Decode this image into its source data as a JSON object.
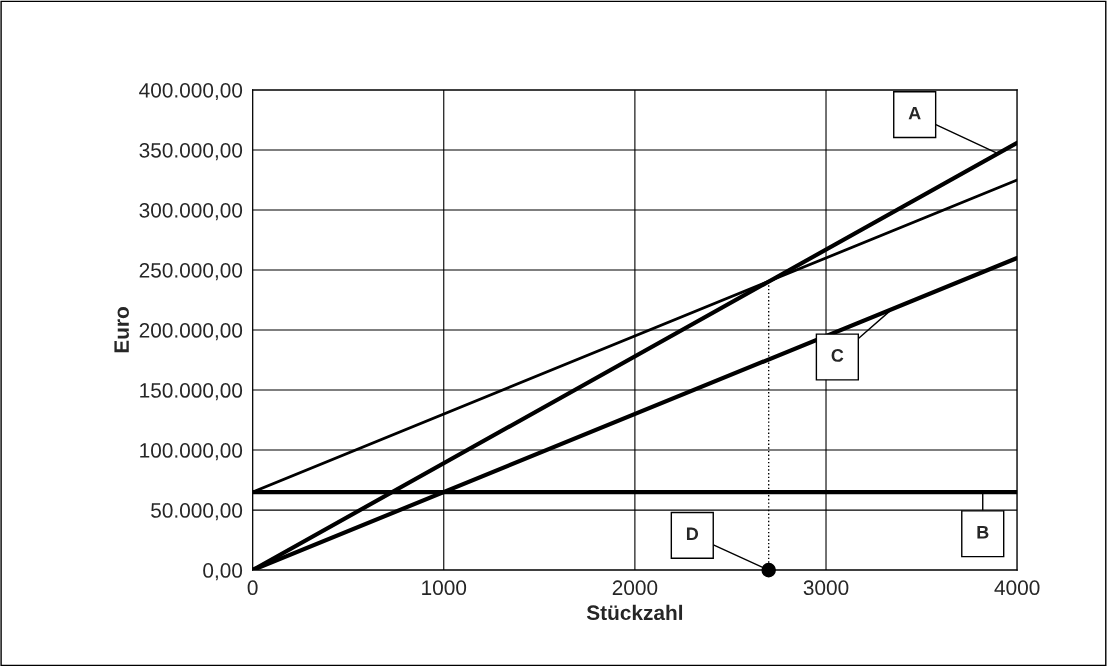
{
  "chart_data": {
    "type": "line",
    "xlabel": "Stückzahl",
    "ylabel": "Euro",
    "series": [
      {
        "color": "#000000",
        "x": [
          0,
          4000
        ],
        "values": [
          0,
          356000
        ]
      },
      {
        "color": "#000000",
        "x": [
          0,
          4000
        ],
        "values": [
          65000,
          325000
        ]
      },
      {
        "color": "#000000",
        "x": [
          0,
          4000
        ],
        "values": [
          0,
          260000
        ]
      },
      {
        "color": "#000000",
        "x": [
          0,
          4000
        ],
        "values": [
          65000,
          65000
        ]
      },
      {
        "color": "#000000",
        "x": [
          2700,
          2700
        ],
        "values": [
          0,
          240000
        ],
        "line_style": "dotted"
      },
      {
        "type": "scatter",
        "color": "#000000",
        "x": [
          2700
        ],
        "values": [
          0
        ],
        "marker": "circle"
      }
    ],
    "xlim": [
      0,
      4000
    ],
    "xticks": [
      0,
      1000,
      2000,
      3000,
      4000
    ],
    "ylim": [
      0,
      400000
    ],
    "yticks": [
      {
        "value": 0,
        "label": "0,00"
      },
      {
        "value": 50000,
        "label": "50.000,00"
      },
      {
        "value": 100000,
        "label": "100.000,00"
      },
      {
        "value": 150000,
        "label": "150.000,00"
      },
      {
        "value": 200000,
        "label": "200.000,00"
      },
      {
        "value": 250000,
        "label": "250.000,00"
      },
      {
        "value": 300000,
        "label": "300.000,00"
      },
      {
        "value": 350000,
        "label": "350.000,00"
      },
      {
        "value": 400000,
        "label": "400.000,00"
      }
    ],
    "grid": true,
    "marker": "none",
    "line_style": "solid",
    "annotations": [
      {
        "text": "A",
        "x": 3900,
        "y": 347000
      },
      {
        "text": "B",
        "x": 3820,
        "y": 65000
      },
      {
        "text": "C",
        "x": 3350,
        "y": 218000
      },
      {
        "text": "D",
        "x": 2700,
        "y": 0
      }
    ]
  }
}
